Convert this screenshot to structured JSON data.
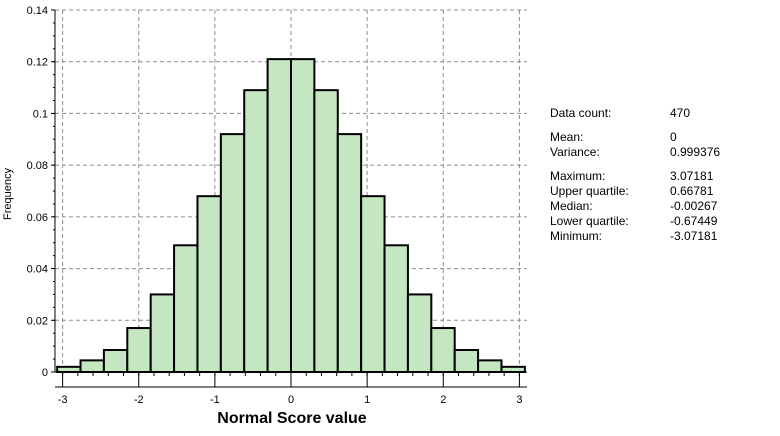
{
  "chart_data": {
    "type": "bar",
    "title": "",
    "xlabel": "Normal Score value",
    "ylabel": "Frequency",
    "xlim": [
      -3.1,
      3.1
    ],
    "ylim": [
      0,
      0.14
    ],
    "xticks": [
      "-3",
      "-2",
      "-1",
      "0",
      "1",
      "2",
      "3"
    ],
    "yticks": [
      "0",
      "0.02",
      "0.04",
      "0.06",
      "0.08",
      "0.1",
      "0.12",
      "0.14"
    ],
    "grid": true,
    "bin_edges": [
      -3.0718,
      -2.7646,
      -2.4575,
      -2.1503,
      -1.8431,
      -1.5359,
      -1.2287,
      -0.9215,
      -0.6144,
      -0.3072,
      0.0,
      0.3072,
      0.6144,
      0.9215,
      1.2287,
      1.5359,
      1.8431,
      2.1503,
      2.4575,
      2.7646,
      3.0718
    ],
    "values": [
      0.002,
      0.0045,
      0.0085,
      0.017,
      0.03,
      0.049,
      0.068,
      0.092,
      0.109,
      0.121,
      0.121,
      0.109,
      0.092,
      0.068,
      0.049,
      0.03,
      0.017,
      0.0085,
      0.0045,
      0.002
    ],
    "bar_color": "#c4e6c0",
    "edge_color": "#000000"
  },
  "stats": {
    "data_count": {
      "label": "Data count:",
      "value": "470"
    },
    "mean": {
      "label": "Mean:",
      "value": "0"
    },
    "variance": {
      "label": "Variance:",
      "value": "0.999376"
    },
    "maximum": {
      "label": "Maximum:",
      "value": "3.07181"
    },
    "upper_quartile": {
      "label": "Upper quartile:",
      "value": "0.66781"
    },
    "median": {
      "label": "Median:",
      "value": "-0.00267"
    },
    "lower_quartile": {
      "label": "Lower quartile:",
      "value": "-0.67449"
    },
    "minimum": {
      "label": "Minimum:",
      "value": "-3.07181"
    }
  }
}
